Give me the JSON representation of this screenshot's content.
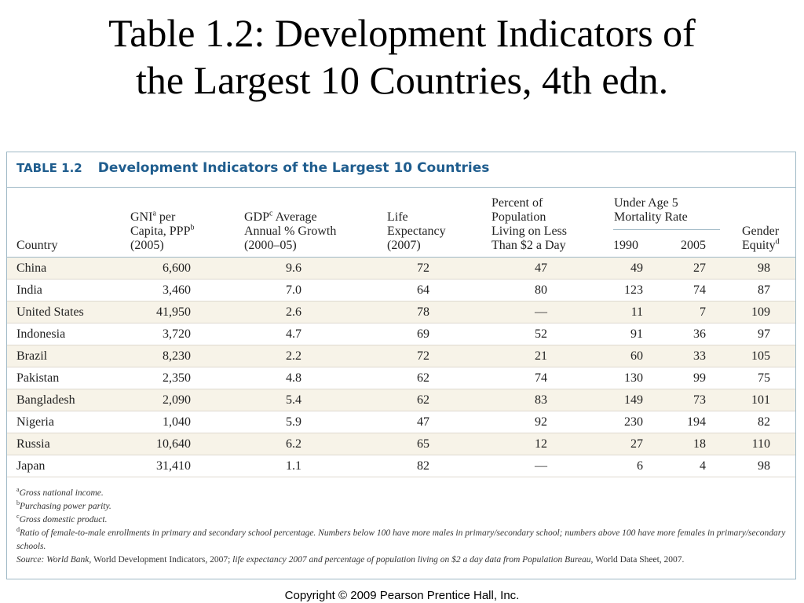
{
  "slide": {
    "title_line1": "Table 1.2: Development Indicators of",
    "title_line2": "the Largest 10 Countries, 4th edn."
  },
  "table": {
    "label": "TABLE 1.2",
    "title": "Development Indicators of the Largest 10 Countries",
    "headers": {
      "country": "Country",
      "gni_1": "GNI",
      "gni_1_sup": "a",
      "gni_1_rest": " per",
      "gni_2": "Capita, PPP",
      "gni_2_sup": "b",
      "gni_3": "(2005)",
      "gdp_1": "GDP",
      "gdp_1_sup": "c",
      "gdp_1_rest": " Average",
      "gdp_2": "Annual % Growth",
      "gdp_3": "(2000–05)",
      "life_1": "Life",
      "life_2": "Expectancy",
      "life_3": "(2007)",
      "poverty_1": "Percent of",
      "poverty_2": "Population",
      "poverty_3": "Living on Less",
      "poverty_4": "Than $2 a Day",
      "mortality_1": "Under Age 5",
      "mortality_2": "Mortality Rate",
      "year_1990": "1990",
      "year_2005": "2005",
      "gender_1": "Gender",
      "gender_2": "Equity",
      "gender_2_sup": "d"
    },
    "rows": [
      {
        "country": "China",
        "gni": "6,600",
        "gdp": "9.6",
        "life": "72",
        "poverty": "47",
        "m1990": "49",
        "m2005": "27",
        "gender": "98"
      },
      {
        "country": "India",
        "gni": "3,460",
        "gdp": "7.0",
        "life": "64",
        "poverty": "80",
        "m1990": "123",
        "m2005": "74",
        "gender": "87"
      },
      {
        "country": "United States",
        "gni": "41,950",
        "gdp": "2.6",
        "life": "78",
        "poverty": "—",
        "m1990": "11",
        "m2005": "7",
        "gender": "109"
      },
      {
        "country": "Indonesia",
        "gni": "3,720",
        "gdp": "4.7",
        "life": "69",
        "poverty": "52",
        "m1990": "91",
        "m2005": "36",
        "gender": "97"
      },
      {
        "country": "Brazil",
        "gni": "8,230",
        "gdp": "2.2",
        "life": "72",
        "poverty": "21",
        "m1990": "60",
        "m2005": "33",
        "gender": "105"
      },
      {
        "country": "Pakistan",
        "gni": "2,350",
        "gdp": "4.8",
        "life": "62",
        "poverty": "74",
        "m1990": "130",
        "m2005": "99",
        "gender": "75"
      },
      {
        "country": "Bangladesh",
        "gni": "2,090",
        "gdp": "5.4",
        "life": "62",
        "poverty": "83",
        "m1990": "149",
        "m2005": "73",
        "gender": "101"
      },
      {
        "country": "Nigeria",
        "gni": "1,040",
        "gdp": "5.9",
        "life": "47",
        "poverty": "92",
        "m1990": "230",
        "m2005": "194",
        "gender": "82"
      },
      {
        "country": "Russia",
        "gni": "10,640",
        "gdp": "6.2",
        "life": "65",
        "poverty": "12",
        "m1990": "27",
        "m2005": "18",
        "gender": "110"
      },
      {
        "country": "Japan",
        "gni": "31,410",
        "gdp": "1.1",
        "life": "82",
        "poverty": "—",
        "m1990": "6",
        "m2005": "4",
        "gender": "98"
      }
    ],
    "notes": {
      "a_mark": "a",
      "a_text": "Gross national income.",
      "b_mark": "b",
      "b_text": "Purchasing power parity.",
      "c_mark": "c",
      "c_text": "Gross domestic product.",
      "d_mark": "d",
      "d_text": "Ratio of female-to-male enrollments in primary and secondary school percentage. Numbers below 100 have more males in primary/secondary school; numbers above 100 have more females in primary/secondary schools.",
      "source_1": "Source: World Bank, ",
      "source_2": "World Development Indicators, 2007; ",
      "source_3": "life expectancy 2007 and percentage of population living on $2 a day data from Population Bureau, ",
      "source_4": "World Data Sheet, 2007."
    }
  },
  "footer": {
    "copyright": "Copyright © 2009 Pearson Prentice Hall, Inc."
  },
  "colors": {
    "heading_blue": "#1f5d8e",
    "rule_blue": "#9fb9c6",
    "shaded_row": "#f7f3e8"
  }
}
